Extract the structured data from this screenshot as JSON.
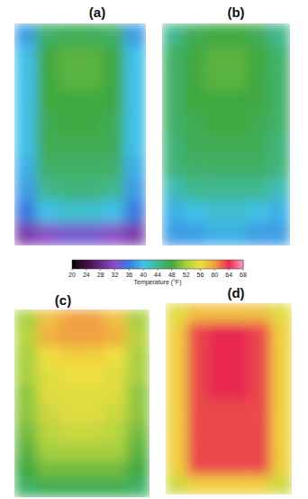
{
  "chart_data": [
    {
      "type": "heatmap",
      "title": "(a)",
      "cells": [
        [
          38,
          46,
          47,
          47,
          46,
          38
        ],
        [
          40,
          48,
          49,
          49,
          48,
          40
        ],
        [
          40,
          48,
          49,
          49,
          48,
          40
        ],
        [
          40,
          48,
          48,
          48,
          48,
          40
        ],
        [
          40,
          47,
          48,
          48,
          47,
          40
        ],
        [
          40,
          47,
          47,
          47,
          47,
          40
        ],
        [
          39,
          46,
          46,
          46,
          46,
          39
        ],
        [
          38,
          44,
          45,
          45,
          44,
          38
        ],
        [
          36,
          40,
          41,
          41,
          40,
          36
        ],
        [
          30,
          32,
          33,
          33,
          32,
          30
        ]
      ]
    },
    {
      "type": "heatmap",
      "title": "(b)",
      "cells": [
        [
          44,
          47,
          48,
          48,
          47,
          44
        ],
        [
          46,
          48,
          49,
          49,
          48,
          46
        ],
        [
          46,
          48,
          49,
          49,
          48,
          46
        ],
        [
          46,
          48,
          48,
          48,
          48,
          46
        ],
        [
          46,
          47,
          48,
          48,
          47,
          46
        ],
        [
          45,
          47,
          47,
          47,
          47,
          45
        ],
        [
          45,
          46,
          46,
          46,
          46,
          45
        ],
        [
          42,
          44,
          44,
          44,
          44,
          42
        ],
        [
          39,
          40,
          41,
          41,
          40,
          39
        ],
        [
          38,
          38,
          39,
          39,
          38,
          38
        ]
      ]
    },
    {
      "type": "heatmap",
      "title": "(c)",
      "cells": [
        [
          52,
          58,
          60,
          60,
          58,
          52
        ],
        [
          53,
          59,
          60,
          60,
          59,
          53
        ],
        [
          52,
          56,
          57,
          57,
          56,
          52
        ],
        [
          52,
          55,
          56,
          56,
          55,
          52
        ],
        [
          51,
          55,
          55,
          55,
          55,
          51
        ],
        [
          51,
          54,
          55,
          55,
          54,
          51
        ],
        [
          50,
          53,
          54,
          54,
          53,
          50
        ],
        [
          49,
          52,
          52,
          52,
          52,
          49
        ],
        [
          48,
          50,
          50,
          50,
          50,
          48
        ],
        [
          46,
          47,
          47,
          47,
          47,
          46
        ]
      ]
    },
    {
      "type": "heatmap",
      "title": "(d)",
      "cells": [
        [
          55,
          58,
          58,
          58,
          58,
          55
        ],
        [
          57,
          63,
          64,
          64,
          63,
          57
        ],
        [
          57,
          63,
          64,
          64,
          63,
          57
        ],
        [
          57,
          63,
          64,
          64,
          63,
          57
        ],
        [
          57,
          63,
          64,
          64,
          63,
          57
        ],
        [
          57,
          63,
          63,
          63,
          63,
          57
        ],
        [
          57,
          63,
          63,
          63,
          63,
          57
        ],
        [
          57,
          63,
          63,
          63,
          63,
          57
        ],
        [
          57,
          63,
          63,
          63,
          63,
          57
        ],
        [
          54,
          57,
          57,
          57,
          57,
          54
        ]
      ]
    }
  ],
  "colorbar": {
    "range": [
      20,
      68
    ],
    "ticks": [
      20,
      24,
      28,
      32,
      36,
      40,
      44,
      48,
      52,
      56,
      60,
      64,
      68
    ],
    "label": "Temperature (°F)"
  }
}
